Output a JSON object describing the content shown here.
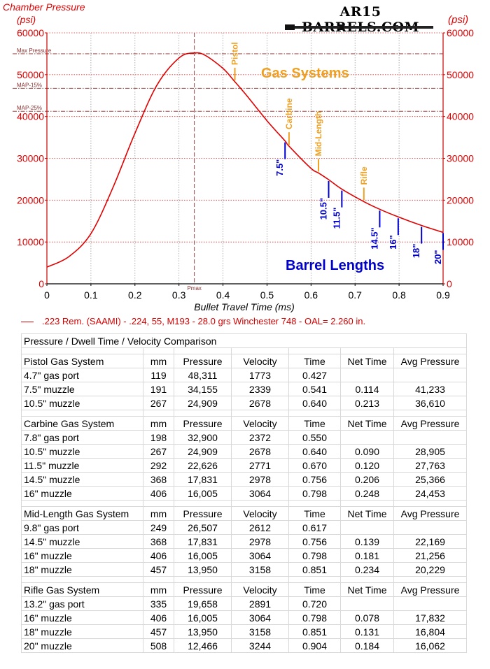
{
  "header": {
    "left_axis_title_1": "Chamber Pressure",
    "left_axis_title_2": "(psi)",
    "right_axis_title": "(psi)",
    "logo_text": "AR15 BARRELS.COM"
  },
  "chart_data": {
    "type": "line",
    "xlabel": "Bullet Travel Time (ms)",
    "xlim": [
      0,
      0.9
    ],
    "ylim": [
      0,
      60000
    ],
    "x_ticks": [
      "0",
      "0.1",
      "0.2",
      "0.3",
      "0.4",
      "0.5",
      "0.6",
      "0.7",
      "0.8",
      "0.9"
    ],
    "y_ticks": [
      "0",
      "10000",
      "20000",
      "30000",
      "40000",
      "50000",
      "60000"
    ],
    "grid": true,
    "series": [
      {
        "name": ".223 Rem. (SAAMI) - .224, 55, M193 - 28.0 grs Winchester 748 - OAL= 2.260 in.",
        "color": "#e00000",
        "x": [
          0,
          0.05,
          0.1,
          0.15,
          0.2,
          0.25,
          0.3,
          0.335,
          0.36,
          0.4,
          0.427,
          0.45,
          0.5,
          0.541,
          0.55,
          0.6,
          0.617,
          0.64,
          0.67,
          0.72,
          0.756,
          0.798,
          0.851,
          0.9
        ],
        "y": [
          4000,
          6500,
          12000,
          23000,
          36000,
          47500,
          54000,
          55200,
          54600,
          51500,
          48311,
          45500,
          39000,
          34155,
          32900,
          27600,
          26507,
          24909,
          22626,
          19658,
          17831,
          16005,
          13950,
          12300
        ]
      }
    ],
    "reference_lines": [
      {
        "label": "Max Pressure",
        "y": 55000
      },
      {
        "label": "MAP-15%",
        "y": 46750
      },
      {
        "label": "MAP-25%",
        "y": 41250
      }
    ],
    "pmax": {
      "label": "Pmax",
      "x": 0.335
    },
    "gas_section_title": "Gas Systems",
    "barrel_section_title": "Barrel Lengths",
    "gas_markers": [
      {
        "label": "Pistol",
        "x": 0.427,
        "y": 48311
      },
      {
        "label": "Carbine",
        "x": 0.55,
        "y": 32900
      },
      {
        "label": "Mid-Length",
        "x": 0.617,
        "y": 26507
      },
      {
        "label": "Rifle",
        "x": 0.72,
        "y": 19658
      }
    ],
    "barrel_markers": [
      {
        "label": "7.5\"",
        "x": 0.541,
        "y": 34155
      },
      {
        "label": "10.5\"",
        "x": 0.64,
        "y": 24909
      },
      {
        "label": "11.5\"",
        "x": 0.67,
        "y": 22626
      },
      {
        "label": "14.5\"",
        "x": 0.756,
        "y": 17831
      },
      {
        "label": "16\"",
        "x": 0.798,
        "y": 16005
      },
      {
        "label": "18\"",
        "x": 0.851,
        "y": 13950
      },
      {
        "label": "20\"",
        "x": 0.904,
        "y": 12466
      }
    ]
  },
  "legend": {
    "text": ".223 Rem. (SAAMI) - .224, 55, M193 - 28.0 grs Winchester 748 - OAL= 2.260 in."
  },
  "table": {
    "title": "Pressure / Dwell Time / Velocity Comparison",
    "sections": [
      {
        "header": [
          "Pistol Gas System",
          "mm",
          "Pressure",
          "Velocity",
          "Time",
          "Net Time",
          "Avg Pressure"
        ],
        "rows": [
          [
            "4.7\" gas port",
            "119",
            "48,311",
            "1773",
            "0.427",
            "",
            ""
          ],
          [
            "7.5\" muzzle",
            "191",
            "34,155",
            "2339",
            "0.541",
            "0.114",
            "41,233"
          ],
          [
            "10.5\" muzzle",
            "267",
            "24,909",
            "2678",
            "0.640",
            "0.213",
            "36,610"
          ]
        ]
      },
      {
        "header": [
          "Carbine Gas System",
          "mm",
          "Pressure",
          "Velocity",
          "Time",
          "Net Time",
          "Avg Pressure"
        ],
        "rows": [
          [
            "7.8\" gas port",
            "198",
            "32,900",
            "2372",
            "0.550",
            "",
            ""
          ],
          [
            "10.5\" muzzle",
            "267",
            "24,909",
            "2678",
            "0.640",
            "0.090",
            "28,905"
          ],
          [
            "11.5\" muzzle",
            "292",
            "22,626",
            "2771",
            "0.670",
            "0.120",
            "27,763"
          ],
          [
            "14.5\" muzzle",
            "368",
            "17,831",
            "2978",
            "0.756",
            "0.206",
            "25,366"
          ],
          [
            "16\" muzzle",
            "406",
            "16,005",
            "3064",
            "0.798",
            "0.248",
            "24,453"
          ]
        ]
      },
      {
        "header": [
          "Mid-Length Gas System",
          "mm",
          "Pressure",
          "Velocity",
          "Time",
          "Net Time",
          "Avg Pressure"
        ],
        "rows": [
          [
            "9.8\" gas port",
            "249",
            "26,507",
            "2612",
            "0.617",
            "",
            ""
          ],
          [
            "14.5\" muzzle",
            "368",
            "17,831",
            "2978",
            "0.756",
            "0.139",
            "22,169"
          ],
          [
            "16\" muzzle",
            "406",
            "16,005",
            "3064",
            "0.798",
            "0.181",
            "21,256"
          ],
          [
            "18\" muzzle",
            "457",
            "13,950",
            "3158",
            "0.851",
            "0.234",
            "20,229"
          ]
        ]
      },
      {
        "header": [
          "Rifle Gas System",
          "mm",
          "Pressure",
          "Velocity",
          "Time",
          "Net Time",
          "Avg Pressure"
        ],
        "rows": [
          [
            "13.2\" gas port",
            "335",
            "19,658",
            "2891",
            "0.720",
            "",
            ""
          ],
          [
            "16\" muzzle",
            "406",
            "16,005",
            "3064",
            "0.798",
            "0.078",
            "17,832"
          ],
          [
            "18\" muzzle",
            "457",
            "13,950",
            "3158",
            "0.851",
            "0.131",
            "16,804"
          ],
          [
            "20\" muzzle",
            "508",
            "12,466",
            "3244",
            "0.904",
            "0.184",
            "16,062"
          ]
        ]
      }
    ]
  },
  "colors": {
    "curve": "#e00000",
    "axis": "#cc0000",
    "gas_label": "#f0a020",
    "barrel_label": "#0000cc",
    "grid": "#e03030"
  }
}
